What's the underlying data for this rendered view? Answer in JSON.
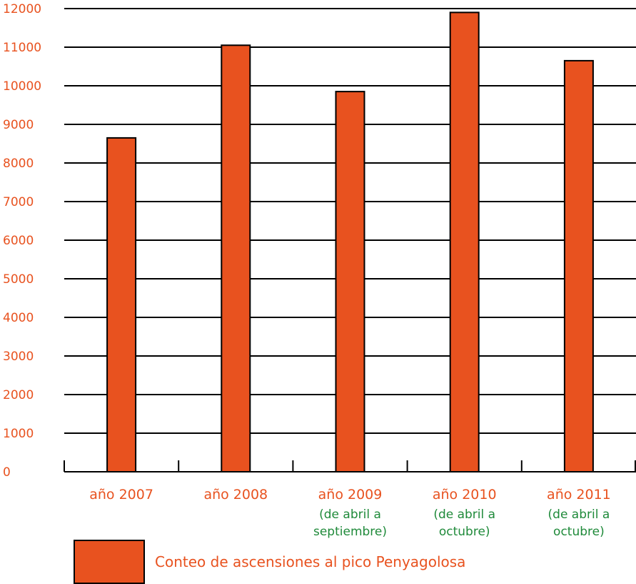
{
  "chart_data": {
    "type": "bar",
    "title": "",
    "xlabel": "",
    "ylabel": "",
    "ylim": [
      0,
      12000
    ],
    "yticks": [
      "0",
      "1000",
      "2000",
      "3000",
      "4000",
      "5000",
      "6000",
      "7000",
      "8000",
      "9000",
      "10000",
      "11000",
      "12000"
    ],
    "grid": true,
    "categories": [
      {
        "label": "año 2007",
        "sub": []
      },
      {
        "label": "año 2008",
        "sub": []
      },
      {
        "label": "año 2009",
        "sub": [
          "(de abril a",
          "septiembre)"
        ]
      },
      {
        "label": "año 2010",
        "sub": [
          "(de abril a",
          "octubre)"
        ]
      },
      {
        "label": "año 2011",
        "sub": [
          "(de abril a",
          "octubre)"
        ]
      }
    ],
    "series": [
      {
        "name": "Conteo de ascensiones al pico Penyagolosa",
        "values": [
          8650,
          11050,
          9850,
          11900,
          10650
        ]
      }
    ],
    "legend_position": "bottom-left",
    "colors": {
      "bar": "#e8521f",
      "axis_text": "#e8521f",
      "sub_text": "#1f8a3a",
      "grid": "#000000"
    }
  }
}
